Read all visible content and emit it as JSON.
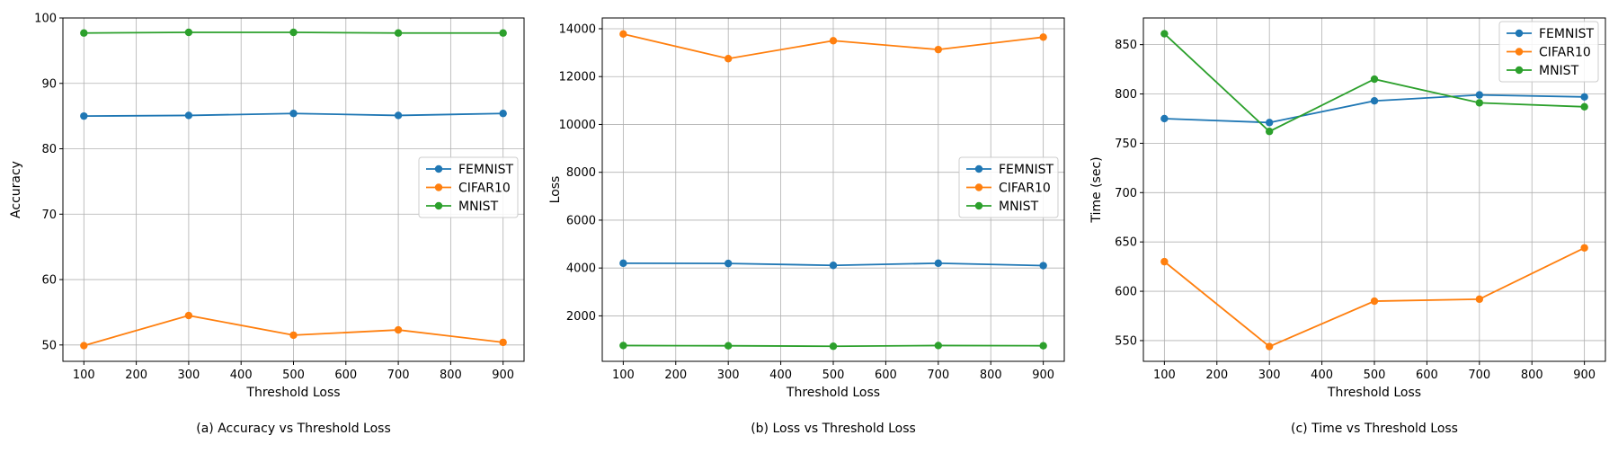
{
  "chart_data": [
    {
      "type": "line",
      "caption": "(a) Accuracy vs Threshold Loss",
      "xlabel": "Threshold Loss",
      "ylabel": "Accuracy",
      "x": [
        100,
        300,
        500,
        700,
        900
      ],
      "xlim": [
        60,
        940
      ],
      "ylim": [
        47.5,
        100
      ],
      "xticks": [
        100,
        200,
        300,
        400,
        500,
        600,
        700,
        800,
        900
      ],
      "yticks": [
        50,
        60,
        70,
        80,
        90,
        100
      ],
      "grid": true,
      "legend_position": "center-right",
      "series": [
        {
          "name": "FEMNIST",
          "color": "#1f77b4",
          "values": [
            85.0,
            85.1,
            85.4,
            85.1,
            85.4
          ]
        },
        {
          "name": "CIFAR10",
          "color": "#ff7f0e",
          "values": [
            49.9,
            54.5,
            51.5,
            52.3,
            50.4
          ]
        },
        {
          "name": "MNIST",
          "color": "#2ca02c",
          "values": [
            97.7,
            97.8,
            97.8,
            97.7,
            97.7
          ]
        }
      ]
    },
    {
      "type": "line",
      "caption": "(b) Loss vs Threshold Loss",
      "xlabel": "Threshold Loss",
      "ylabel": "Loss",
      "x": [
        100,
        300,
        500,
        700,
        900
      ],
      "xlim": [
        60,
        940
      ],
      "ylim": [
        100,
        14450
      ],
      "xticks": [
        100,
        200,
        300,
        400,
        500,
        600,
        700,
        800,
        900
      ],
      "yticks": [
        2000,
        4000,
        6000,
        8000,
        10000,
        12000,
        14000
      ],
      "grid": true,
      "legend_position": "center-right",
      "series": [
        {
          "name": "FEMNIST",
          "color": "#1f77b4",
          "values": [
            4200,
            4190,
            4110,
            4200,
            4100
          ]
        },
        {
          "name": "CIFAR10",
          "color": "#ff7f0e",
          "values": [
            13780,
            12750,
            13500,
            13130,
            13650
          ]
        },
        {
          "name": "MNIST",
          "color": "#2ca02c",
          "values": [
            760,
            750,
            730,
            760,
            750
          ]
        }
      ]
    },
    {
      "type": "line",
      "caption": "(c) Time vs Threshold Loss",
      "xlabel": "Threshold Loss",
      "ylabel": "Time (sec)",
      "x": [
        100,
        300,
        500,
        700,
        900
      ],
      "xlim": [
        60,
        940
      ],
      "ylim": [
        529,
        877
      ],
      "xticks": [
        100,
        200,
        300,
        400,
        500,
        600,
        700,
        800,
        900
      ],
      "yticks": [
        550,
        600,
        650,
        700,
        750,
        800,
        850
      ],
      "grid": true,
      "legend_position": "top-right",
      "series": [
        {
          "name": "FEMNIST",
          "color": "#1f77b4",
          "values": [
            775,
            771,
            793,
            799,
            797
          ]
        },
        {
          "name": "CIFAR10",
          "color": "#ff7f0e",
          "values": [
            630,
            544,
            590,
            592,
            644
          ]
        },
        {
          "name": "MNIST",
          "color": "#2ca02c",
          "values": [
            861,
            762,
            815,
            791,
            787
          ]
        }
      ]
    }
  ]
}
